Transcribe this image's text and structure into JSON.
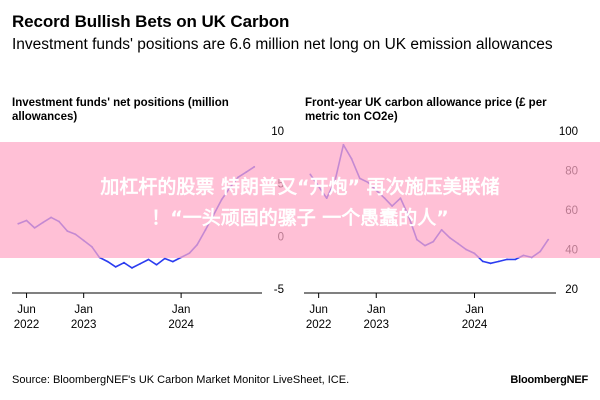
{
  "title": "Record Bullish Bets on UK Carbon",
  "subtitle": "Investment funds' positions are 6.6 million net long on UK emission allowances",
  "source": "Source: BloombergNEF's UK Carbon Market Monitor LiveSheet, ICE.",
  "brand": "BloombergNEF",
  "banner": {
    "line1": "加杠杆的股票 特朗普又“开炮” 再次施压美联储",
    "line2": "！“一头顽固的骡子 一个愚蠢的人”"
  },
  "colors": {
    "line": "#2b3cf0",
    "axis": "#000000",
    "banner": "#ffa8c6"
  },
  "chart_data": [
    {
      "type": "line",
      "title": "Investment funds' net positions (million allowances)",
      "ylim": [
        -5,
        10
      ],
      "yticks": [
        {
          "v": 10,
          "label": "10"
        },
        {
          "v": 5,
          "label": "5"
        },
        {
          "v": 0,
          "label": "0"
        },
        {
          "v": -5,
          "label": "-5"
        }
      ],
      "xticks": [
        {
          "x": "2022-06-01",
          "line1": "Jun",
          "line2": "2022"
        },
        {
          "x": "2023-01-01",
          "line1": "Jan",
          "line2": "2023"
        },
        {
          "x": "2024-01-01",
          "line1": "Jan",
          "line2": "2024"
        }
      ],
      "xrange": [
        "2022-04-15",
        "2024-10-15"
      ],
      "series": [
        {
          "values": [
            [
              "2022-05-01",
              1.2
            ],
            [
              "2022-06-01",
              1.5
            ],
            [
              "2022-07-01",
              0.8
            ],
            [
              "2022-08-01",
              1.3
            ],
            [
              "2022-09-01",
              1.8
            ],
            [
              "2022-10-01",
              1.4
            ],
            [
              "2022-11-01",
              0.5
            ],
            [
              "2022-12-01",
              0.2
            ],
            [
              "2023-01-01",
              -0.4
            ],
            [
              "2023-02-01",
              -1.0
            ],
            [
              "2023-03-01",
              -2.0
            ],
            [
              "2023-04-01",
              -2.4
            ],
            [
              "2023-05-01",
              -2.9
            ],
            [
              "2023-06-01",
              -2.5
            ],
            [
              "2023-07-01",
              -3.0
            ],
            [
              "2023-08-01",
              -2.6
            ],
            [
              "2023-09-01",
              -2.2
            ],
            [
              "2023-10-01",
              -2.7
            ],
            [
              "2023-11-01",
              -2.1
            ],
            [
              "2023-12-01",
              -2.4
            ],
            [
              "2024-01-01",
              -2.0
            ],
            [
              "2024-02-01",
              -1.6
            ],
            [
              "2024-03-01",
              -0.8
            ],
            [
              "2024-04-01",
              0.6
            ],
            [
              "2024-05-01",
              2.0
            ],
            [
              "2024-06-01",
              3.5
            ],
            [
              "2024-07-01",
              4.6
            ],
            [
              "2024-08-01",
              5.6
            ],
            [
              "2024-09-01",
              6.1
            ],
            [
              "2024-10-01",
              6.6
            ]
          ]
        }
      ]
    },
    {
      "type": "line",
      "title": "Front-year UK carbon allowance price (£ per metric ton CO2e)",
      "ylim": [
        20,
        100
      ],
      "yticks": [
        {
          "v": 100,
          "label": "100"
        },
        {
          "v": 80,
          "label": "80"
        },
        {
          "v": 60,
          "label": "60"
        },
        {
          "v": 40,
          "label": "40"
        },
        {
          "v": 20,
          "label": "20"
        }
      ],
      "xticks": [
        {
          "x": "2022-06-01",
          "line1": "Jun",
          "line2": "2022"
        },
        {
          "x": "2023-01-01",
          "line1": "Jan",
          "line2": "2023"
        },
        {
          "x": "2024-01-01",
          "line1": "Jan",
          "line2": "2024"
        }
      ],
      "xrange": [
        "2022-04-15",
        "2024-10-15"
      ],
      "series": [
        {
          "values": [
            [
              "2022-05-01",
              78
            ],
            [
              "2022-06-01",
              72
            ],
            [
              "2022-07-01",
              66
            ],
            [
              "2022-08-01",
              75
            ],
            [
              "2022-09-01",
              93
            ],
            [
              "2022-10-01",
              86
            ],
            [
              "2022-11-01",
              76
            ],
            [
              "2022-12-01",
              74
            ],
            [
              "2023-01-01",
              70
            ],
            [
              "2023-02-01",
              66
            ],
            [
              "2023-03-01",
              62
            ],
            [
              "2023-04-01",
              66
            ],
            [
              "2023-05-01",
              57
            ],
            [
              "2023-06-01",
              45
            ],
            [
              "2023-07-01",
              42
            ],
            [
              "2023-08-01",
              44
            ],
            [
              "2023-09-01",
              50
            ],
            [
              "2023-10-01",
              46
            ],
            [
              "2023-11-01",
              43
            ],
            [
              "2023-12-01",
              40
            ],
            [
              "2024-01-01",
              38
            ],
            [
              "2024-02-01",
              34
            ],
            [
              "2024-03-01",
              33
            ],
            [
              "2024-04-01",
              34
            ],
            [
              "2024-05-01",
              35
            ],
            [
              "2024-06-01",
              35
            ],
            [
              "2024-07-01",
              37
            ],
            [
              "2024-08-01",
              36
            ],
            [
              "2024-09-01",
              39
            ],
            [
              "2024-10-01",
              45
            ]
          ]
        }
      ]
    }
  ]
}
